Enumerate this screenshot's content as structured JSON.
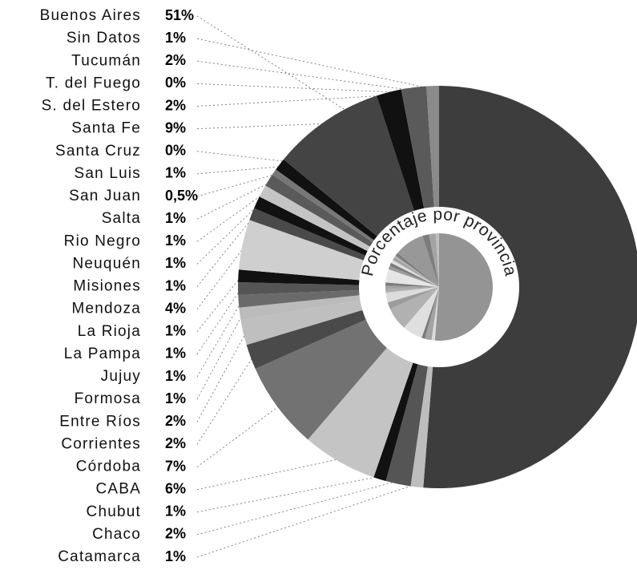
{
  "chart_data": {
    "type": "pie",
    "title": "Porcentaje por provincia",
    "categories": [
      "Buenos Aires",
      "Sin Datos",
      "Tucumán",
      "T. del Fuego",
      "S. del Estero",
      "Santa Fe",
      "Santa Cruz",
      "San Luis",
      "San Juan",
      "Salta",
      "Rio Negro",
      "Neuquén",
      "Misiones",
      "Mendoza",
      "La Rioja",
      "La Pampa",
      "Jujuy",
      "Formosa",
      "Entre Ríos",
      "Corrientes",
      "Córdoba",
      "CABA",
      "Chubut",
      "Chaco",
      "Catamarca"
    ],
    "values": [
      51,
      1,
      2,
      0,
      2,
      9,
      0,
      1,
      0.5,
      1,
      1,
      1,
      1,
      4,
      1,
      1,
      1,
      1,
      2,
      2,
      7,
      6,
      1,
      2,
      1
    ],
    "value_labels": [
      "51%",
      "1%",
      "2%",
      "0%",
      "2%",
      "9%",
      "0%",
      "1%",
      "0,5%",
      "1%",
      "1%",
      "1%",
      "1%",
      "4%",
      "1%",
      "1%",
      "1%",
      "1%",
      "2%",
      "2%",
      "7%",
      "6%",
      "1%",
      "2%",
      "1%"
    ],
    "colors": [
      "#3d3d3d",
      "#8a8a8a",
      "#5a5a5a",
      "#bdbdbd",
      "#111111",
      "#444444",
      "#bdbdbd",
      "#111111",
      "#777777",
      "#5a5a5a",
      "#c4c4c4",
      "#111111",
      "#4a4a4a",
      "#cfcfcf",
      "#111111",
      "#555555",
      "#6a6a6a",
      "#bbbbbb",
      "#bfbfbf",
      "#4a4a4a",
      "#727272",
      "#c4c4c4",
      "#111111",
      "#555555",
      "#bdbdbd"
    ]
  }
}
